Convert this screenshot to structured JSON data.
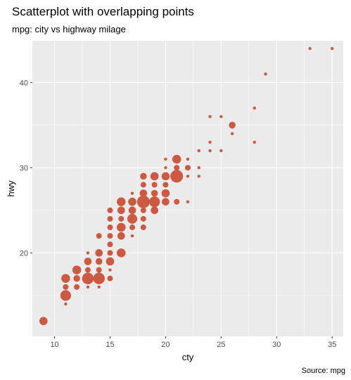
{
  "chart_data": {
    "type": "scatter",
    "title": "Scatterplot with overlapping points",
    "subtitle": "mpg: city vs highway milage",
    "xlabel": "cty",
    "ylabel": "hwy",
    "caption": "Source: mpg",
    "xlim": [
      8,
      36
    ],
    "ylim": [
      10.2,
      44.9
    ],
    "x_ticks": [
      10,
      15,
      20,
      25,
      30,
      35
    ],
    "y_ticks": [
      20,
      30,
      40
    ],
    "grid": true,
    "point_color": "#CC5A43",
    "panel_background": "#EBEBEB",
    "grid_color": "#FFFFFF",
    "points": [
      {
        "x": 9,
        "y": 12,
        "n": 5
      },
      {
        "x": 11,
        "y": 14,
        "n": 1
      },
      {
        "x": 11,
        "y": 15,
        "n": 10
      },
      {
        "x": 11,
        "y": 16,
        "n": 2
      },
      {
        "x": 11,
        "y": 17,
        "n": 6
      },
      {
        "x": 12,
        "y": 16,
        "n": 2
      },
      {
        "x": 12,
        "y": 17,
        "n": 3
      },
      {
        "x": 12,
        "y": 18,
        "n": 6
      },
      {
        "x": 13,
        "y": 16,
        "n": 1
      },
      {
        "x": 13,
        "y": 17,
        "n": 12
      },
      {
        "x": 13,
        "y": 18,
        "n": 2
      },
      {
        "x": 13,
        "y": 19,
        "n": 4
      },
      {
        "x": 13,
        "y": 20,
        "n": 1
      },
      {
        "x": 14,
        "y": 16,
        "n": 1
      },
      {
        "x": 14,
        "y": 17,
        "n": 12
      },
      {
        "x": 14,
        "y": 18,
        "n": 2
      },
      {
        "x": 14,
        "y": 19,
        "n": 3
      },
      {
        "x": 14,
        "y": 20,
        "n": 4
      },
      {
        "x": 14,
        "y": 22,
        "n": 2
      },
      {
        "x": 15,
        "y": 17,
        "n": 2
      },
      {
        "x": 15,
        "y": 18,
        "n": 1
      },
      {
        "x": 15,
        "y": 19,
        "n": 5
      },
      {
        "x": 15,
        "y": 20,
        "n": 2
      },
      {
        "x": 15,
        "y": 21,
        "n": 2
      },
      {
        "x": 15,
        "y": 22,
        "n": 2
      },
      {
        "x": 15,
        "y": 23,
        "n": 2
      },
      {
        "x": 15,
        "y": 24,
        "n": 2
      },
      {
        "x": 15,
        "y": 25,
        "n": 2
      },
      {
        "x": 16,
        "y": 20,
        "n": 6
      },
      {
        "x": 16,
        "y": 22,
        "n": 4
      },
      {
        "x": 16,
        "y": 23,
        "n": 6
      },
      {
        "x": 16,
        "y": 24,
        "n": 2
      },
      {
        "x": 16,
        "y": 25,
        "n": 4
      },
      {
        "x": 16,
        "y": 26,
        "n": 6
      },
      {
        "x": 17,
        "y": 22,
        "n": 1
      },
      {
        "x": 17,
        "y": 23,
        "n": 2
      },
      {
        "x": 17,
        "y": 24,
        "n": 8
      },
      {
        "x": 17,
        "y": 25,
        "n": 4
      },
      {
        "x": 17,
        "y": 26,
        "n": 5
      },
      {
        "x": 17,
        "y": 27,
        "n": 1
      },
      {
        "x": 18,
        "y": 23,
        "n": 2
      },
      {
        "x": 18,
        "y": 24,
        "n": 2
      },
      {
        "x": 18,
        "y": 25,
        "n": 2
      },
      {
        "x": 18,
        "y": 26,
        "n": 15
      },
      {
        "x": 18,
        "y": 27,
        "n": 4
      },
      {
        "x": 18,
        "y": 28,
        "n": 2
      },
      {
        "x": 18,
        "y": 29,
        "n": 3
      },
      {
        "x": 19,
        "y": 25,
        "n": 4
      },
      {
        "x": 19,
        "y": 26,
        "n": 10
      },
      {
        "x": 19,
        "y": 27,
        "n": 3
      },
      {
        "x": 19,
        "y": 28,
        "n": 2
      },
      {
        "x": 19,
        "y": 29,
        "n": 5
      },
      {
        "x": 20,
        "y": 26,
        "n": 4
      },
      {
        "x": 20,
        "y": 27,
        "n": 5
      },
      {
        "x": 20,
        "y": 28,
        "n": 2
      },
      {
        "x": 20,
        "y": 29,
        "n": 5
      },
      {
        "x": 20,
        "y": 30,
        "n": 1
      },
      {
        "x": 20,
        "y": 31,
        "n": 1
      },
      {
        "x": 21,
        "y": 26,
        "n": 2
      },
      {
        "x": 21,
        "y": 29,
        "n": 15
      },
      {
        "x": 21,
        "y": 30,
        "n": 2
      },
      {
        "x": 21,
        "y": 31,
        "n": 6
      },
      {
        "x": 22,
        "y": 26,
        "n": 1
      },
      {
        "x": 22,
        "y": 29,
        "n": 1
      },
      {
        "x": 22,
        "y": 30,
        "n": 2
      },
      {
        "x": 22,
        "y": 31,
        "n": 1
      },
      {
        "x": 23,
        "y": 29,
        "n": 1
      },
      {
        "x": 23,
        "y": 30,
        "n": 1
      },
      {
        "x": 23,
        "y": 32,
        "n": 1
      },
      {
        "x": 24,
        "y": 32,
        "n": 1
      },
      {
        "x": 24,
        "y": 33,
        "n": 1
      },
      {
        "x": 24,
        "y": 36,
        "n": 1
      },
      {
        "x": 25,
        "y": 32,
        "n": 1
      },
      {
        "x": 25,
        "y": 36,
        "n": 1
      },
      {
        "x": 26,
        "y": 34,
        "n": 1
      },
      {
        "x": 26,
        "y": 35,
        "n": 3
      },
      {
        "x": 28,
        "y": 33,
        "n": 1
      },
      {
        "x": 28,
        "y": 37,
        "n": 1
      },
      {
        "x": 29,
        "y": 41,
        "n": 1
      },
      {
        "x": 33,
        "y": 44,
        "n": 1
      },
      {
        "x": 35,
        "y": 44,
        "n": 1
      }
    ]
  }
}
